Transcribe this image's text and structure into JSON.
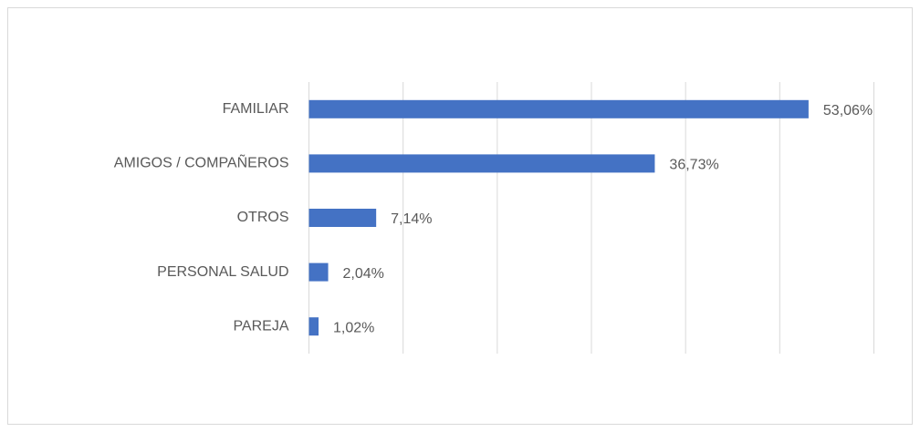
{
  "chart_data": {
    "type": "bar",
    "orientation": "horizontal",
    "categories": [
      "FAMILIAR",
      "AMIGOS / COMPAÑEROS",
      "OTROS",
      "PERSONAL SALUD",
      "PAREJA"
    ],
    "values": [
      53.06,
      36.73,
      7.14,
      2.04,
      1.02
    ],
    "value_labels": [
      "53,06%",
      "36,73%",
      "7,14%",
      "2,04%",
      "1,02%"
    ],
    "color": "#4472c4",
    "xlim": [
      0,
      60
    ],
    "xticks": [
      0,
      10,
      20,
      30,
      40,
      50,
      60
    ],
    "grid": true
  }
}
